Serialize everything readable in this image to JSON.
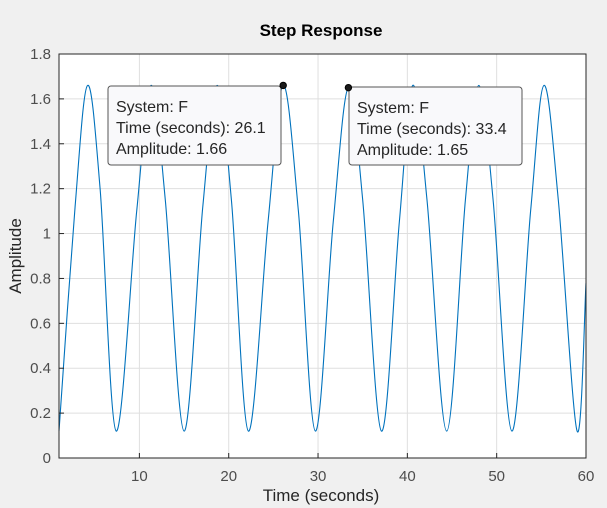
{
  "chart_data": {
    "type": "line",
    "title": "Step Response",
    "xlabel": "Time (seconds)",
    "ylabel": "Amplitude",
    "xlim": [
      1,
      60
    ],
    "ylim": [
      0,
      1.8
    ],
    "x_ticks": [
      10,
      20,
      30,
      40,
      50,
      60
    ],
    "y_ticks": [
      0,
      0.2,
      0.4,
      0.6,
      0.8,
      1,
      1.2,
      1.4,
      1.6,
      1.8
    ],
    "grid": true,
    "series": [
      {
        "color": "#0072bd",
        "x": [
          1,
          2.8,
          4.2,
          5.6,
          7.4,
          9.7,
          11.3,
          12.9,
          15.0,
          17.1,
          18.7,
          20.3,
          22.2,
          24.4,
          26.1,
          27.8,
          29.7,
          31.7,
          33.4,
          35.0,
          37.1,
          39.1,
          40.6,
          42.2,
          44.4,
          46.5,
          48.0,
          49.6,
          51.7,
          53.8,
          55.3,
          56.9,
          59.0,
          60
        ],
        "y": [
          0.12,
          1.12,
          1.66,
          1.2,
          0.12,
          1.1,
          1.66,
          1.15,
          0.12,
          1.12,
          1.66,
          1.15,
          0.12,
          1.05,
          1.66,
          1.1,
          0.12,
          1.05,
          1.65,
          1.15,
          0.12,
          1.05,
          1.66,
          1.15,
          0.12,
          1.15,
          1.66,
          1.15,
          0.12,
          1.1,
          1.66,
          1.15,
          0.12,
          0.78
        ]
      }
    ],
    "datatips": [
      {
        "system_line": "System: F",
        "time_line": "Time (seconds): 26.1",
        "amplitude_line": "Amplitude: 1.66",
        "x": 26.1,
        "y": 1.66
      },
      {
        "system_line": "System: F",
        "time_line": "Time (seconds): 33.4",
        "amplitude_line": "Amplitude: 1.65",
        "x": 33.4,
        "y": 1.65
      }
    ]
  }
}
